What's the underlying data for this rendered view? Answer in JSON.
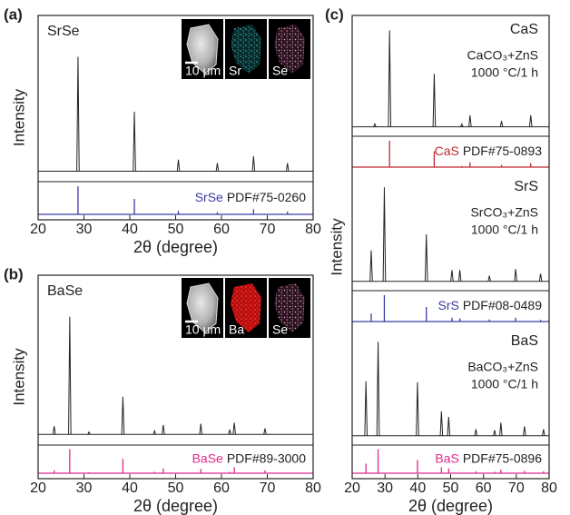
{
  "chart_data": [
    {
      "type": "xrd",
      "panel": "(a)",
      "ylabel": "Intensity",
      "xlabel": "2θ (degree)",
      "xlim": [
        20,
        80
      ],
      "xticks": [
        20,
        30,
        40,
        50,
        60,
        70,
        80
      ],
      "insets": [
        "10 μm",
        "Sr",
        "Se"
      ],
      "patterns": [
        {
          "name": "SrSe",
          "color": "#222222",
          "ylim": [
            -6,
            106
          ],
          "x": [
            28.7,
            41.0,
            50.6,
            59.1,
            67.0,
            74.4
          ],
          "values": [
            100,
            52,
            10,
            7,
            13,
            7
          ],
          "ref": {
            "name": "SrSe",
            "pdf": "PDF#75-0260",
            "color": "#3b3ba6",
            "ylim": [
              0,
              110
            ],
            "x": [
              28.7,
              41.0,
              50.6,
              59.1,
              67.0,
              74.4
            ],
            "values": [
              100,
              55,
              12,
              8,
              18,
              10
            ]
          }
        }
      ]
    },
    {
      "type": "xrd",
      "panel": "(b)",
      "ylabel": "Intensity",
      "xlabel": "2θ (degree)",
      "xlim": [
        20,
        80
      ],
      "xticks": [
        20,
        30,
        40,
        50,
        60,
        70,
        80
      ],
      "insets": [
        "10 μm",
        "Ba",
        "Se"
      ],
      "patterns": [
        {
          "name": "BaSe",
          "color": "#222222",
          "ylim": [
            -6,
            106
          ],
          "x": [
            23.5,
            26.9,
            31.1,
            38.5,
            45.4,
            47.3,
            55.5,
            61.8,
            62.8,
            69.5
          ],
          "values": [
            7,
            100,
            2,
            32,
            3,
            8,
            9,
            4,
            10,
            5
          ],
          "ref": {
            "name": "BaSe",
            "pdf": "PDF#89-3000",
            "color": "#e0288c",
            "ylim": [
              0,
              110
            ],
            "x": [
              23.5,
              26.9,
              31.1,
              38.5,
              45.4,
              47.3,
              55.5,
              61.8,
              62.8,
              69.5
            ],
            "values": [
              12,
              100,
              4,
              60,
              6,
              20,
              18,
              6,
              25,
              12
            ]
          }
        }
      ]
    },
    {
      "type": "xrd",
      "panel": "(c)",
      "ylabel": "Intensity",
      "xlabel": "2θ (degree)",
      "xlim": [
        20,
        80
      ],
      "xticks": [
        20,
        30,
        40,
        50,
        60,
        70,
        80
      ],
      "patterns": [
        {
          "name": "CaS",
          "notes": [
            "CaCO₃+ZnS",
            "1000 °C/1 h"
          ],
          "color": "#222222",
          "ylim": [
            -6,
            106
          ],
          "x": [
            26.9,
            31.4,
            45.0,
            53.4,
            55.9,
            65.5,
            74.4
          ],
          "values": [
            3,
            100,
            55,
            3,
            12,
            6,
            12
          ],
          "ref": {
            "name": "CaS",
            "pdf": "PDF#75-0893",
            "color": "#c0282f",
            "ylim": [
              0,
              110
            ],
            "x": [
              31.4,
              45.0,
              53.4,
              55.9,
              65.5,
              74.4
            ],
            "values": [
              100,
              60,
              4,
              18,
              8,
              15
            ]
          }
        },
        {
          "name": "SrS",
          "notes": [
            "SrCO₃+ZnS",
            "1000 °C/1 h"
          ],
          "color": "#222222",
          "ylim": [
            -6,
            106
          ],
          "x": [
            25.8,
            29.8,
            42.6,
            50.4,
            52.8,
            61.8,
            69.8,
            77.4
          ],
          "values": [
            33,
            100,
            50,
            12,
            12,
            6,
            13,
            8
          ],
          "ref": {
            "name": "SrS",
            "pdf": "PDF#08-0489",
            "color": "#3b3ba6",
            "ylim": [
              0,
              110
            ],
            "x": [
              25.8,
              29.8,
              42.6,
              50.4,
              52.8,
              61.8,
              69.8,
              77.4
            ],
            "values": [
              30,
              100,
              55,
              14,
              12,
              8,
              14,
              6
            ]
          }
        },
        {
          "name": "BaS",
          "notes": [
            "BaCO₃+ZnS",
            "1000 °C/1 h"
          ],
          "color": "#222222",
          "ylim": [
            -6,
            106
          ],
          "x": [
            24.2,
            27.9,
            39.9,
            47.2,
            49.4,
            57.7,
            63.4,
            65.3,
            72.5,
            78.3
          ],
          "values": [
            58,
            100,
            57,
            26,
            20,
            7,
            6,
            14,
            10,
            7
          ],
          "ref": {
            "name": "BaS",
            "pdf": "PDF#75-0896",
            "color": "#e0288c",
            "ylim": [
              0,
              110
            ],
            "x": [
              24.2,
              27.9,
              39.9,
              47.2,
              49.4,
              57.7,
              63.4,
              65.3,
              72.5,
              78.3
            ],
            "values": [
              40,
              100,
              55,
              25,
              20,
              8,
              6,
              15,
              10,
              8
            ]
          }
        }
      ]
    }
  ]
}
